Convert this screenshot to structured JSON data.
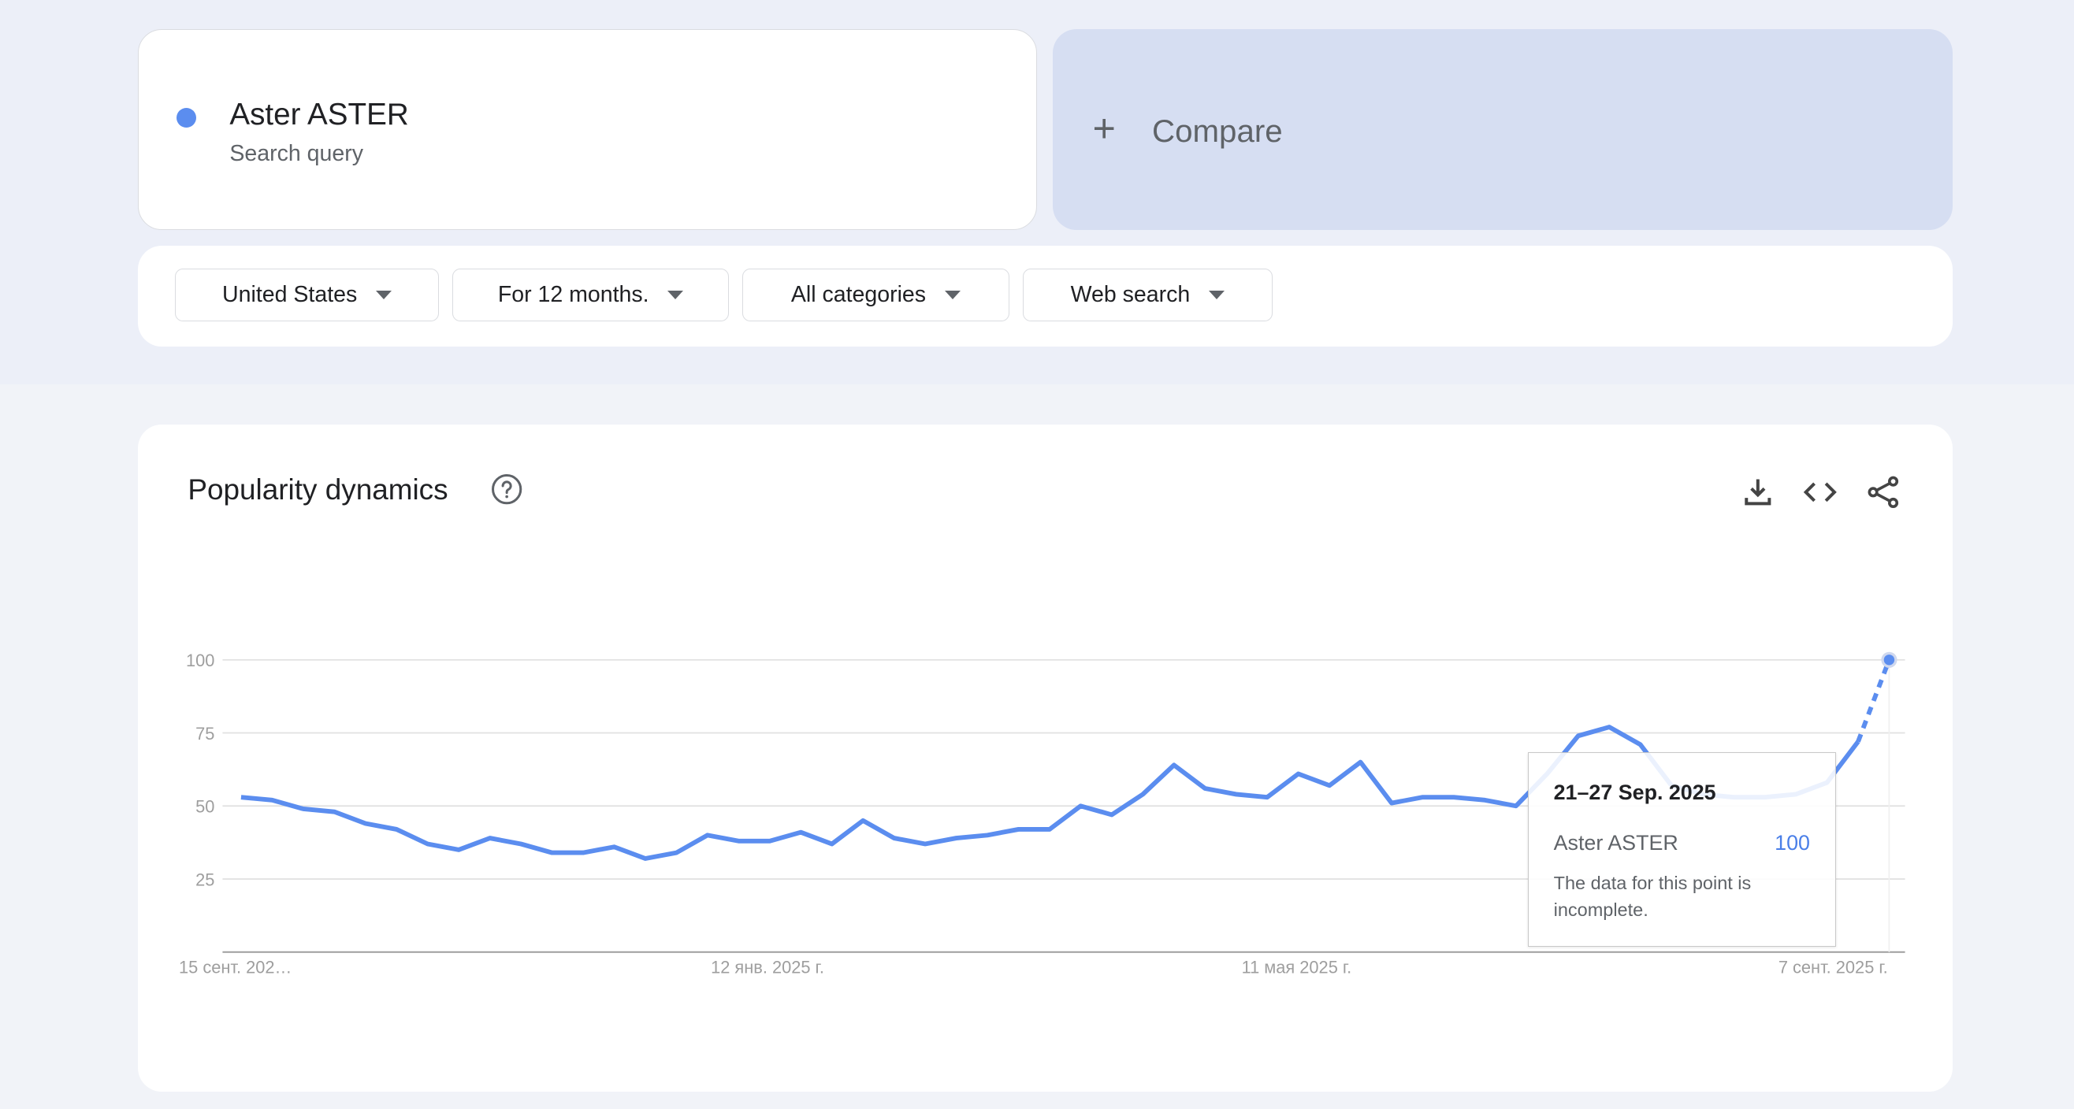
{
  "term": {
    "name": "Aster ASTER",
    "type": "Search query",
    "color": "#5b8def"
  },
  "compare": {
    "icon": "plus-icon",
    "label": "Compare"
  },
  "filters": [
    {
      "label": "United States"
    },
    {
      "label": "For 12 months."
    },
    {
      "label": "All categories"
    },
    {
      "label": "Web search"
    }
  ],
  "chart_card": {
    "title": "Popularity dynamics",
    "icons": [
      "help-icon",
      "download-icon",
      "embed-code-icon",
      "share-icon"
    ]
  },
  "chart_data": {
    "type": "line",
    "x_start": "2024-09-15",
    "x_interval": "weekly",
    "x_tick_labels": [
      "15 сент. 202…",
      "12 янв. 2025 г.",
      "11 мая 2025 г.",
      "7 сент. 2025 г."
    ],
    "y_ticks": [
      25,
      50,
      75,
      100
    ],
    "ylim": [
      0,
      100
    ],
    "grid": true,
    "series": [
      {
        "name": "Aster ASTER",
        "color": "#5b8def",
        "values": [
          53,
          52,
          49,
          48,
          44,
          42,
          37,
          35,
          39,
          37,
          34,
          34,
          36,
          32,
          34,
          40,
          38,
          38,
          41,
          37,
          45,
          39,
          37,
          39,
          40,
          42,
          42,
          50,
          47,
          54,
          64,
          56,
          54,
          53,
          61,
          57,
          65,
          51,
          53,
          53,
          52,
          50,
          61,
          74,
          77,
          71,
          57,
          54,
          53,
          53,
          54,
          58,
          72,
          100
        ],
        "last_point_incomplete": true
      }
    ],
    "tooltip": {
      "date": "21–27 Sep. 2025",
      "series": "Aster ASTER",
      "value": "100",
      "note": "The data for this point is incomplete."
    }
  }
}
